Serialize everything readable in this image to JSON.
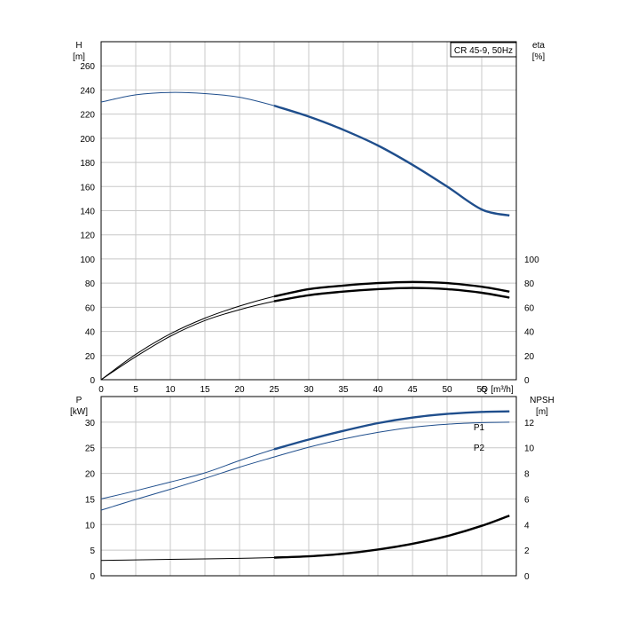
{
  "chart_data": [
    {
      "type": "line",
      "model_label": "CR 45-9, 50Hz",
      "xlabel": "Q [m³/h]",
      "xlabel_q": "Q",
      "xlabel_unit": "[m³/h]",
      "xlim": [
        0,
        60
      ],
      "x_ticks": [
        "0",
        "5",
        "10",
        "15",
        "20",
        "25",
        "30",
        "35",
        "40",
        "45",
        "50",
        "55"
      ],
      "y_left_label": "H",
      "y_left_unit": "[m]",
      "y_left_lim": [
        0,
        280
      ],
      "y_left_ticks": [
        "0",
        "20",
        "40",
        "60",
        "80",
        "100",
        "120",
        "140",
        "160",
        "180",
        "200",
        "220",
        "240",
        "260"
      ],
      "y_right_label": "eta",
      "y_right_unit": "[%]",
      "y_right_ticks": [
        "0",
        "20",
        "40",
        "60",
        "80",
        "100"
      ],
      "series": [
        {
          "key": "head",
          "axis": "left",
          "color": "#1f4e8c",
          "x": [
            0,
            5,
            10,
            15,
            20,
            25,
            30,
            35,
            40,
            45,
            50,
            55,
            59
          ],
          "y": [
            230,
            236,
            238,
            237,
            234,
            227,
            218,
            207,
            194,
            178,
            160,
            141,
            136
          ]
        },
        {
          "key": "eta_upper",
          "axis": "left",
          "color": "#000000",
          "x": [
            0,
            5,
            10,
            15,
            20,
            25,
            30,
            35,
            40,
            45,
            50,
            55,
            59
          ],
          "y": [
            0,
            21,
            38,
            51,
            61,
            69,
            75,
            78,
            80,
            81,
            80,
            77,
            73
          ]
        },
        {
          "key": "eta_lower",
          "axis": "left",
          "color": "#000000",
          "x": [
            0,
            5,
            10,
            15,
            20,
            25,
            30,
            35,
            40,
            45,
            50,
            55,
            59
          ],
          "y": [
            0,
            19,
            36,
            49,
            58,
            65,
            70,
            73,
            75,
            76,
            75,
            72,
            68
          ]
        }
      ]
    },
    {
      "type": "line",
      "xlim": [
        0,
        60
      ],
      "y_left_label": "P",
      "y_left_unit": "[kW]",
      "y_left_lim": [
        0,
        35
      ],
      "y_left_ticks": [
        "0",
        "5",
        "10",
        "15",
        "20",
        "25",
        "30"
      ],
      "y_right_label": "NPSH",
      "y_right_unit": "[m]",
      "y_right_lim": [
        0,
        14
      ],
      "y_right_ticks": [
        "0",
        "2",
        "4",
        "6",
        "8",
        "10",
        "12"
      ],
      "series": [
        {
          "name": "P1",
          "axis": "left",
          "color": "#1f4e8c",
          "x": [
            0,
            5,
            10,
            15,
            20,
            25,
            30,
            35,
            40,
            45,
            50,
            55,
            59
          ],
          "y": [
            15,
            16.6,
            18.3,
            20.1,
            22.5,
            24.7,
            26.6,
            28.3,
            29.8,
            30.9,
            31.6,
            32,
            32.1
          ]
        },
        {
          "name": "P2",
          "axis": "left",
          "color": "#1f4e8c",
          "x": [
            0,
            5,
            10,
            15,
            20,
            25,
            30,
            35,
            40,
            45,
            50,
            55,
            59
          ],
          "y": [
            12.8,
            14.9,
            16.9,
            19,
            21.2,
            23.2,
            25.1,
            26.7,
            28,
            29,
            29.6,
            29.9,
            30
          ]
        },
        {
          "key": "npsh",
          "axis": "right",
          "color": "#000000",
          "x": [
            0,
            5,
            10,
            15,
            20,
            25,
            30,
            35,
            40,
            45,
            50,
            55,
            59
          ],
          "y": [
            1.2,
            1.24,
            1.28,
            1.32,
            1.36,
            1.42,
            1.52,
            1.72,
            2.05,
            2.5,
            3.1,
            3.9,
            4.7
          ]
        }
      ]
    }
  ]
}
